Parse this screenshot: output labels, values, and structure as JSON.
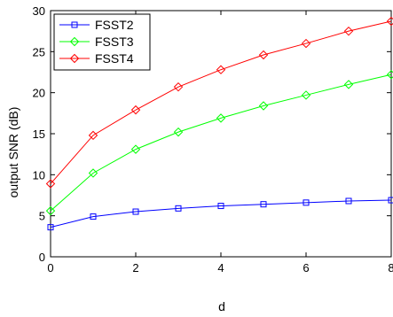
{
  "chart_data": {
    "type": "line",
    "title": "",
    "xlabel": "d",
    "ylabel": "output SNR (dB)",
    "xlim": [
      0,
      8
    ],
    "ylim": [
      0,
      30
    ],
    "x_ticks": [
      "0",
      "2",
      "4",
      "6",
      "8"
    ],
    "y_ticks": [
      "0",
      "5",
      "10",
      "15",
      "20",
      "25",
      "30"
    ],
    "grid": false,
    "legend_position": "top-left",
    "x": [
      0,
      1,
      2,
      3,
      4,
      5,
      6,
      7,
      8
    ],
    "series": [
      {
        "name": "FSST2",
        "color": "#0000ff",
        "marker": "square",
        "values": [
          3.6,
          4.9,
          5.5,
          5.9,
          6.2,
          6.4,
          6.6,
          6.8,
          6.9
        ]
      },
      {
        "name": "FSST3",
        "color": "#00ff00",
        "marker": "diamond",
        "values": [
          5.6,
          10.2,
          13.1,
          15.2,
          16.9,
          18.4,
          19.7,
          21.0,
          22.2
        ]
      },
      {
        "name": "FSST4",
        "color": "#ff0000",
        "marker": "diamond",
        "values": [
          8.9,
          14.8,
          17.9,
          20.7,
          22.8,
          24.6,
          26.0,
          27.5,
          28.7
        ]
      }
    ]
  }
}
